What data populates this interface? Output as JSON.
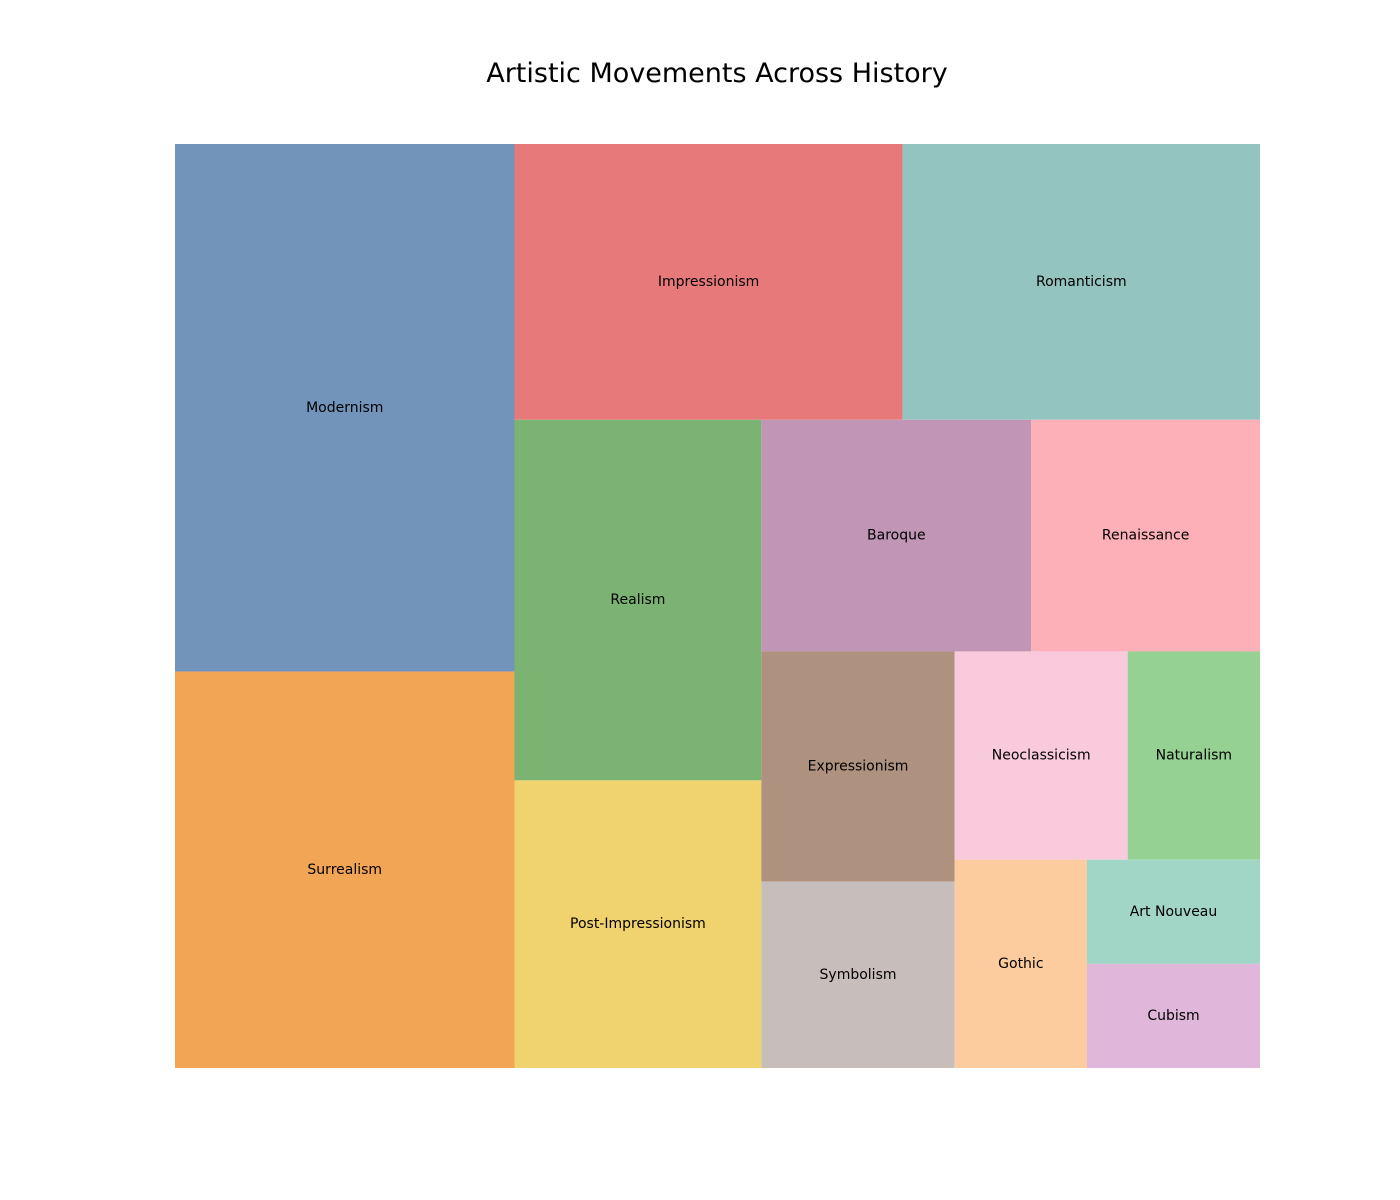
{
  "chart_data": {
    "type": "treemap",
    "title": "Artistic Movements Across History",
    "value_note": "relative tile area, estimated from the image (no numbers printed)",
    "items": [
      {
        "label": "Modernism",
        "value": 16.9,
        "color": "#7294bb"
      },
      {
        "label": "Surrealism",
        "value": 12.7,
        "color": "#f2a554"
      },
      {
        "label": "Impressionism",
        "value": 10.1,
        "color": "#e8797a"
      },
      {
        "label": "Romanticism",
        "value": 9.3,
        "color": "#93c4c0"
      },
      {
        "label": "Realism",
        "value": 8.4,
        "color": "#7bb472"
      },
      {
        "label": "Post-Impressionism",
        "value": 6.7,
        "color": "#f0d36e"
      },
      {
        "label": "Baroque",
        "value": 5.9,
        "color": "#c095b5"
      },
      {
        "label": "Renaissance",
        "value": 5.0,
        "color": "#feb0b8"
      },
      {
        "label": "Expressionism",
        "value": 4.2,
        "color": "#af917f"
      },
      {
        "label": "Symbolism",
        "value": 3.4,
        "color": "#c7bebc"
      },
      {
        "label": "Neoclassicism",
        "value": 3.4,
        "color": "#f9cadb"
      },
      {
        "label": "Naturalism",
        "value": 2.6,
        "color": "#95d193"
      },
      {
        "label": "Gothic",
        "value": 2.6,
        "color": "#fccb9e"
      },
      {
        "label": "Art Nouveau",
        "value": 1.7,
        "color": "#a1d6c7"
      },
      {
        "label": "Cubism",
        "value": 1.7,
        "color": "#e0b6da"
      }
    ]
  }
}
